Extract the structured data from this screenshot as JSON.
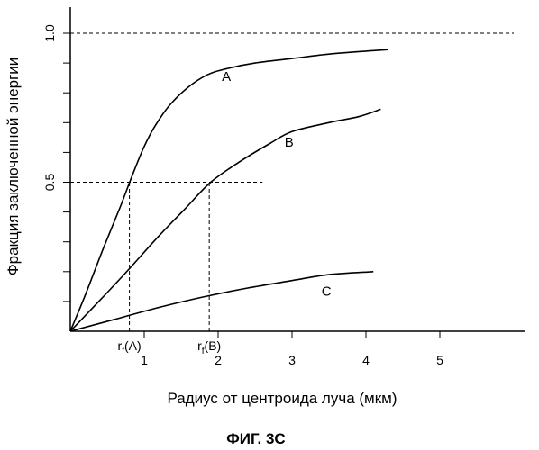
{
  "chart_data": {
    "type": "line",
    "title": "",
    "xlabel": "Радиус от центроида луча (мкм)",
    "ylabel": "Фракция заключенной энергии",
    "figure_caption": "ФИГ. 3С",
    "xlim": [
      0,
      6.15
    ],
    "ylim": [
      0,
      1.02
    ],
    "x_ticks": [
      1,
      2,
      3,
      4,
      5
    ],
    "x_tick_labels": [
      "1",
      "2",
      "3",
      "4",
      "5"
    ],
    "y_ticks": [
      0.1,
      0.2,
      0.3,
      0.4,
      0.5,
      0.6,
      0.7,
      0.8,
      0.9,
      1.0
    ],
    "y_tick_labels": [
      {
        "value": 0.5,
        "label": "0.5"
      },
      {
        "value": 1.0,
        "label": "1.0"
      }
    ],
    "grid": false,
    "series": [
      {
        "name": "A",
        "label_at": [
          2.05,
          0.84
        ],
        "points": [
          [
            0,
            0
          ],
          [
            0.2,
            0.12
          ],
          [
            0.45,
            0.28
          ],
          [
            0.68,
            0.42
          ],
          [
            0.85,
            0.53
          ],
          [
            1.0,
            0.62
          ],
          [
            1.15,
            0.69
          ],
          [
            1.35,
            0.76
          ],
          [
            1.6,
            0.82
          ],
          [
            1.85,
            0.86
          ],
          [
            2.1,
            0.88
          ],
          [
            2.5,
            0.9
          ],
          [
            3.0,
            0.915
          ],
          [
            3.5,
            0.93
          ],
          [
            4.0,
            0.94
          ],
          [
            4.3,
            0.945
          ]
        ]
      },
      {
        "name": "B",
        "label_at": [
          2.9,
          0.62
        ],
        "points": [
          [
            0,
            0
          ],
          [
            0.5,
            0.13
          ],
          [
            0.8,
            0.21
          ],
          [
            1.2,
            0.32
          ],
          [
            1.55,
            0.41
          ],
          [
            1.9,
            0.5
          ],
          [
            2.3,
            0.57
          ],
          [
            2.7,
            0.63
          ],
          [
            3.0,
            0.67
          ],
          [
            3.5,
            0.7
          ],
          [
            3.9,
            0.72
          ],
          [
            4.2,
            0.745
          ]
        ]
      },
      {
        "name": "C",
        "label_at": [
          3.4,
          0.12
        ],
        "points": [
          [
            0,
            0
          ],
          [
            0.6,
            0.04
          ],
          [
            1.2,
            0.08
          ],
          [
            1.8,
            0.115
          ],
          [
            2.4,
            0.145
          ],
          [
            3.0,
            0.17
          ],
          [
            3.5,
            0.19
          ],
          [
            4.1,
            0.2
          ]
        ]
      }
    ],
    "reference_lines": [
      {
        "type": "h",
        "y": 1.0,
        "x_from": 0,
        "x_to": 6.0
      },
      {
        "type": "h",
        "y": 0.5,
        "x_from": 0,
        "x_to": 2.6
      },
      {
        "type": "v",
        "x": 0.8,
        "y_from": 0,
        "y_to": 0.5
      },
      {
        "type": "v",
        "x": 1.88,
        "y_from": 0,
        "y_to": 0.5
      }
    ],
    "annotations": [
      {
        "base": "r",
        "sub": "f",
        "rest": "(A)",
        "x": 0.8
      },
      {
        "base": "r",
        "sub": "f",
        "rest": "(B)",
        "x": 1.88
      }
    ]
  }
}
